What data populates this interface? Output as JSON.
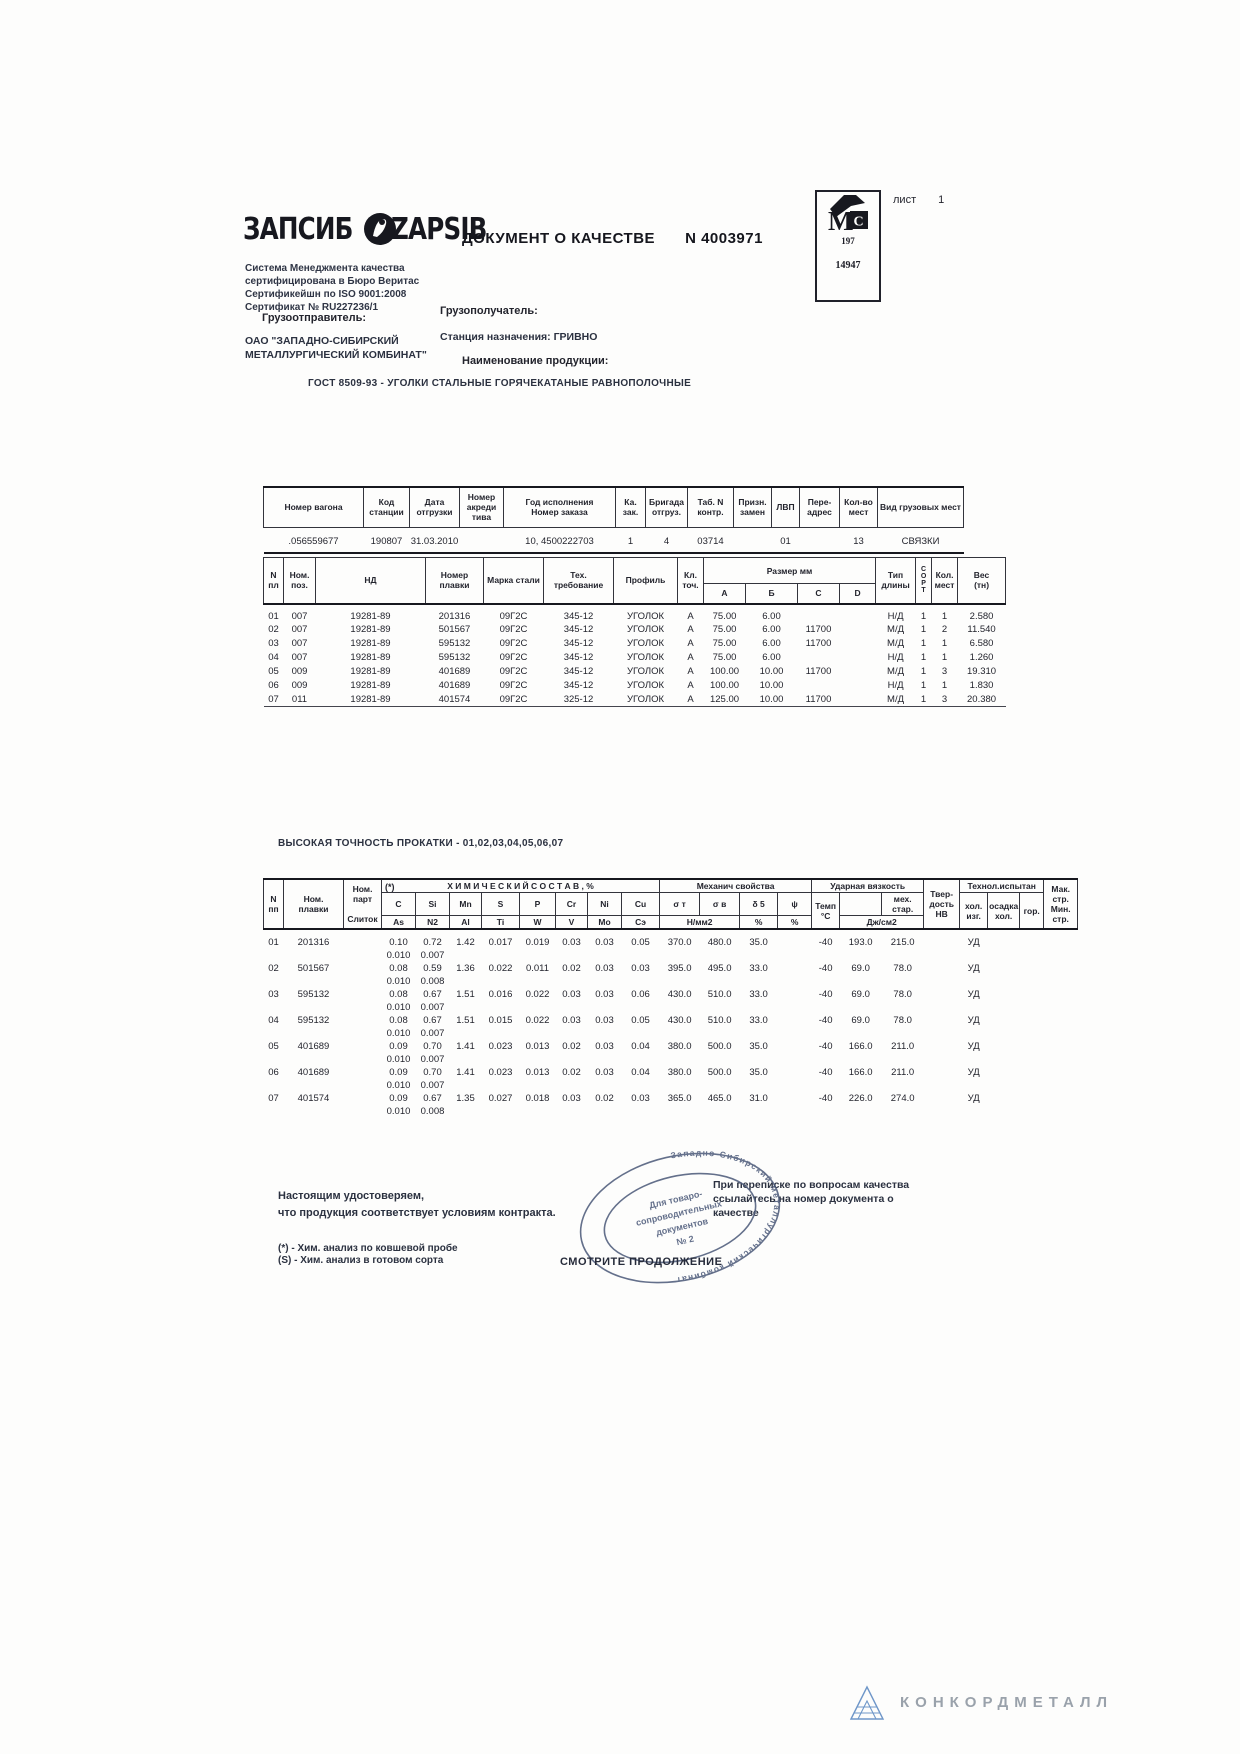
{
  "sheet": {
    "label": "лист",
    "number": "1"
  },
  "header": {
    "logo_ru": "ЗАПСИБ",
    "logo_en": "ZAPSIB",
    "title": "ДОКУМЕНТ О КАЧЕСТВЕ",
    "doc_number": "N 4003971",
    "certification": "Система  Менеджмента  качества\nсертифицирована в Бюро Веритас\nСертификейшн по ISO  9001:2008\nСертификат № RU227236/1",
    "mc_m": "М",
    "mc_c": "С",
    "mc_code1": "197",
    "mc_code2": "14947",
    "shipper_label": "Грузоотправитель:",
    "shipper_name": "ОАО \"ЗАПАДНО-СИБИРСКИЙ\nМЕТАЛЛУРГИЧЕСКИЙ КОМБИНАТ\"",
    "consignee_label": "Грузополучатель:",
    "destination": "Станция назначения: ГРИВНО",
    "product_label": "Наименование   продукции:",
    "product_name": "ГОСТ 8509-93  -  УГОЛКИ СТАЛЬНЫЕ ГОРЯЧЕКАТАНЫЕ РАВНОПОЛОЧНЫЕ"
  },
  "wagon_table": {
    "headers": [
      "Номер вагона",
      "Код\nстанции",
      "Дата\nотгрузки",
      "Номер\nакреди\nтива",
      "Год исполнения\nНомер заказа",
      "Ка.\nзак.",
      "Бригада\nотгруз.",
      "Таб. N\nконтр.",
      "Призн.\nзамен",
      "ЛВП",
      "Пере-\nадрес",
      "Кол-во\nмест",
      "Вид  грузовых  мест"
    ],
    "row": [
      ".056559677",
      "190807",
      "31.03.2010",
      "",
      "10, 4500222703",
      "1",
      "4",
      "03714",
      "",
      "01",
      "",
      "13",
      "СВЯЗКИ"
    ]
  },
  "positions_table": {
    "headers": {
      "n": "N\nпл",
      "pos": "Ном.\nпоз.",
      "nd": "НД",
      "melt": "Номер\nплавки",
      "grade": "Марка стали",
      "tech": "Тех.\nтребование",
      "profile": "Профиль",
      "cls": "Кл.\nточ.",
      "size_group": "Размер   мм",
      "size_a": "А",
      "size_b": "Б",
      "size_c": "С",
      "size_d": "D",
      "len_type": "Тип\nдлины",
      "sort": "С\nО\nР\nТ",
      "qty": "Кол.\nмест",
      "weight": "Вес\n(тн)"
    },
    "rows": [
      [
        "01",
        "007",
        "19281-89",
        "201316",
        "09Г2С",
        "345-12",
        "УГОЛОК",
        "А",
        "75.00",
        "6.00",
        "",
        "",
        "Н/Д",
        "1",
        "1",
        "2.580"
      ],
      [
        "02",
        "007",
        "19281-89",
        "501567",
        "09Г2С",
        "345-12",
        "УГОЛОК",
        "А",
        "75.00",
        "6.00",
        "11700",
        "",
        "М/Д",
        "1",
        "2",
        "11.540"
      ],
      [
        "03",
        "007",
        "19281-89",
        "595132",
        "09Г2С",
        "345-12",
        "УГОЛОК",
        "А",
        "75.00",
        "6.00",
        "11700",
        "",
        "М/Д",
        "1",
        "1",
        "6.580"
      ],
      [
        "04",
        "007",
        "19281-89",
        "595132",
        "09Г2С",
        "345-12",
        "УГОЛОК",
        "А",
        "75.00",
        "6.00",
        "",
        "",
        "Н/Д",
        "1",
        "1",
        "1.260"
      ],
      [
        "05",
        "009",
        "19281-89",
        "401689",
        "09Г2С",
        "345-12",
        "УГОЛОК",
        "А",
        "100.00",
        "10.00",
        "11700",
        "",
        "М/Д",
        "1",
        "3",
        "19.310"
      ],
      [
        "06",
        "009",
        "19281-89",
        "401689",
        "09Г2С",
        "345-12",
        "УГОЛОК",
        "А",
        "100.00",
        "10.00",
        "",
        "",
        "Н/Д",
        "1",
        "1",
        "1.830"
      ],
      [
        "07",
        "011",
        "19281-89",
        "401574",
        "09Г2С",
        "325-12",
        "УГОЛОК",
        "А",
        "125.00",
        "10.00",
        "11700",
        "",
        "М/Д",
        "1",
        "3",
        "20.380"
      ]
    ]
  },
  "precision_note": "ВЫСОКАЯ ТОЧНОСТЬ ПРОКАТКИ   - 01,02,03,04,05,06,07",
  "chem_table": {
    "headers": {
      "n": "N\nпп",
      "melt": "Ном.\nплавки",
      "part": "Ном.\nпарт\n\nСлиток",
      "star": "(*)",
      "chem_group": "Х И М И Ч Е С К И Й   С О С Т А В , %",
      "top": [
        "C",
        "Si",
        "Mn",
        "S",
        "P",
        "Cr",
        "Ni",
        "Cu"
      ],
      "bottom": [
        "As",
        "N2",
        "Al",
        "Ti",
        "W",
        "V",
        "Mo",
        "Cэ"
      ],
      "mech_group": "Механич  свойства",
      "sigma_t": "σ т",
      "sigma_v": "σ в",
      "delta": "δ 5",
      "psi": "ψ",
      "unit_nmm": "Н/мм2",
      "unit_pct1": "%",
      "unit_pct2": "%",
      "impact_group": "Ударная  вязкость",
      "temp": "Темп\n°C",
      "mech_star": "мех.\nстар.",
      "impact_unit": "Дж/см2",
      "hardness": "Твер-\nдость\nНВ",
      "tech_group": "Технол.испытан",
      "tech1": "хол.\nизг.",
      "tech2": "осадка\nхол.",
      "tech3": "гор.",
      "mak": "Мак.\nстр.\nМин.\nстр."
    },
    "rows": [
      {
        "n": "01",
        "melt": "201316",
        "c1": [
          "0.10",
          "0.72",
          "1.42",
          "0.017",
          "0.019",
          "0.03",
          "0.03",
          "0.05"
        ],
        "c2": [
          "0.010",
          "0.007"
        ],
        "mech": [
          "370.0",
          "480.0",
          "35.0",
          ""
        ],
        "temp": "-40",
        "impact": [
          "193.0",
          "215.0"
        ],
        "tech": "УД"
      },
      {
        "n": "02",
        "melt": "501567",
        "c1": [
          "0.08",
          "0.59",
          "1.36",
          "0.022",
          "0.011",
          "0.02",
          "0.03",
          "0.03"
        ],
        "c2": [
          "0.010",
          "0.008"
        ],
        "mech": [
          "395.0",
          "495.0",
          "33.0",
          ""
        ],
        "temp": "-40",
        "impact": [
          "69.0",
          "78.0"
        ],
        "tech": "УД"
      },
      {
        "n": "03",
        "melt": "595132",
        "c1": [
          "0.08",
          "0.67",
          "1.51",
          "0.016",
          "0.022",
          "0.03",
          "0.03",
          "0.06"
        ],
        "c2": [
          "0.010",
          "0.007"
        ],
        "mech": [
          "430.0",
          "510.0",
          "33.0",
          ""
        ],
        "temp": "-40",
        "impact": [
          "69.0",
          "78.0"
        ],
        "tech": "УД"
      },
      {
        "n": "04",
        "melt": "595132",
        "c1": [
          "0.08",
          "0.67",
          "1.51",
          "0.015",
          "0.022",
          "0.03",
          "0.03",
          "0.05"
        ],
        "c2": [
          "0.010",
          "0.007"
        ],
        "mech": [
          "430.0",
          "510.0",
          "33.0",
          ""
        ],
        "temp": "-40",
        "impact": [
          "69.0",
          "78.0"
        ],
        "tech": "УД"
      },
      {
        "n": "05",
        "melt": "401689",
        "c1": [
          "0.09",
          "0.70",
          "1.41",
          "0.023",
          "0.013",
          "0.02",
          "0.03",
          "0.04"
        ],
        "c2": [
          "0.010",
          "0.007"
        ],
        "mech": [
          "380.0",
          "500.0",
          "35.0",
          ""
        ],
        "temp": "-40",
        "impact": [
          "166.0",
          "211.0"
        ],
        "tech": "УД"
      },
      {
        "n": "06",
        "melt": "401689",
        "c1": [
          "0.09",
          "0.70",
          "1.41",
          "0.023",
          "0.013",
          "0.02",
          "0.03",
          "0.04"
        ],
        "c2": [
          "0.010",
          "0.007"
        ],
        "mech": [
          "380.0",
          "500.0",
          "35.0",
          ""
        ],
        "temp": "-40",
        "impact": [
          "166.0",
          "211.0"
        ],
        "tech": "УД"
      },
      {
        "n": "07",
        "melt": "401574",
        "c1": [
          "0.09",
          "0.67",
          "1.35",
          "0.027",
          "0.018",
          "0.03",
          "0.02",
          "0.03"
        ],
        "c2": [
          "0.010",
          "0.008"
        ],
        "mech": [
          "365.0",
          "465.0",
          "31.0",
          ""
        ],
        "temp": "-40",
        "impact": [
          "226.0",
          "274.0"
        ],
        "tech": "УД"
      }
    ]
  },
  "statements": {
    "certify": "Настоящим удостоверяем,\nчто продукция соответствует условиям контракта.",
    "note_star": "(*) - Хим. анализ по ковшевой пробе",
    "note_s": "(S) - Хим. анализ в готовом сорта",
    "continue_note": "СМОТРИТЕ ПРОДОЛЖЕНИЕ",
    "correspondence": "При переписке по вопросам качества\nссылайтесь на номер документа о\nкачестве"
  },
  "stamp": {
    "ring_text": "Западно-Сибирский металлургический комбинат",
    "line1": "Для товаро-",
    "line2": "сопроводительных",
    "line3": "документов",
    "line4": "№ 2"
  },
  "brand": {
    "name": "КОНКОРДМЕТАЛЛ"
  },
  "colors": {
    "ink": "#2b3140",
    "stamp": "#4a5878",
    "brand_gray": "#9aa2ab",
    "brand_blue": "#6f97c9"
  }
}
